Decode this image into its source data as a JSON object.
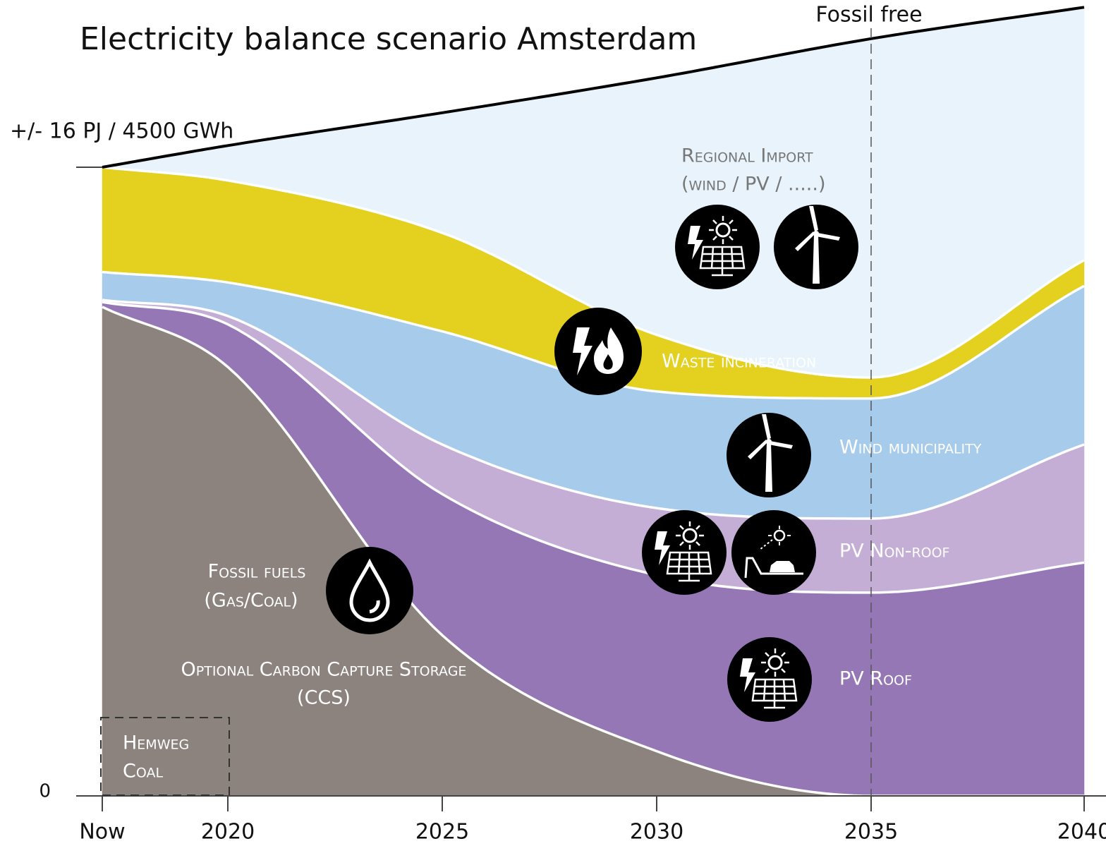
{
  "chart_data": {
    "type": "stacked_area",
    "title": "Electricity balance scenario Amsterdam",
    "categories": [
      "Now",
      "2020",
      "2025",
      "2030",
      "2035",
      "2040"
    ],
    "ylim": [
      0,
      5650
    ],
    "yticks": [
      0,
      {
        "value": 4500,
        "label": "+/- 16 PJ / 4500 GWh"
      }
    ],
    "series": [
      {
        "name": "Fossil fuels",
        "sublabel": "(Gas/Coal)",
        "color": "#8c827e",
        "values": [
          3500,
          3070,
          1150,
          320,
          0,
          0
        ]
      },
      {
        "name": "PV Roof",
        "color": "#9677b5",
        "values": [
          35,
          305,
          1010,
          1260,
          1455,
          1670
        ]
      },
      {
        "name": "PV Non-roof",
        "color": "#c4aed6",
        "values": [
          15,
          60,
          355,
          480,
          530,
          845
        ]
      },
      {
        "name": "Wind municipality",
        "color": "#a7cbea",
        "values": [
          200,
          240,
          810,
          835,
          860,
          1135
        ]
      },
      {
        "name": "Waste incineration",
        "color": "#e3d01f",
        "values": [
          750,
          730,
          705,
          405,
          150,
          185
        ]
      },
      {
        "name": "Regional Import",
        "sublabel": "(wind / PV / .....)",
        "color": "#e8f3fb",
        "values": [
          0,
          250,
          860,
          1840,
          2425,
          1810
        ]
      }
    ],
    "annotations": {
      "fossil_free": "Fossil free",
      "ccs": [
        "Optional Carbon Capture Storage",
        "(CCS)"
      ],
      "hemweg": [
        "Hemweg",
        "Coal"
      ]
    }
  }
}
